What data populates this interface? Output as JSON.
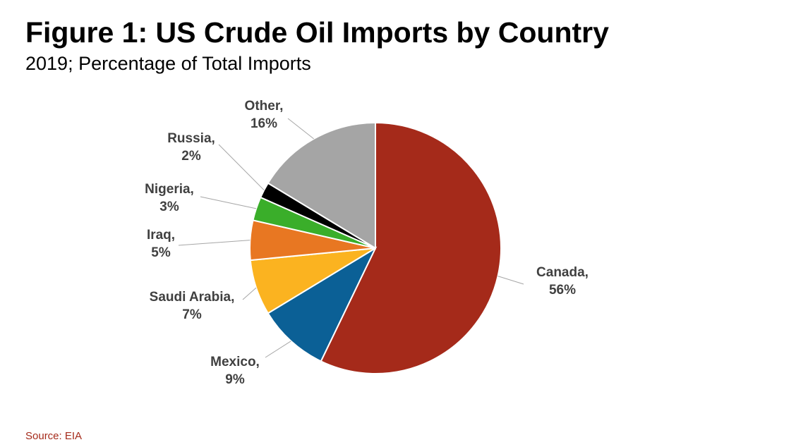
{
  "chart_data": {
    "type": "pie",
    "title": "Figure 1: US Crude Oil Imports by Country",
    "subtitle": "2019; Percentage of Total Imports",
    "source": "Source: EIA",
    "categories": [
      "Canada,",
      "Mexico,",
      "Saudi Arabia,",
      "Iraq,",
      "Nigeria,",
      "Russia,",
      "Other,"
    ],
    "values": [
      56,
      9,
      7,
      5,
      3,
      2,
      16
    ],
    "value_labels": [
      "56%",
      "9%",
      "7%",
      "5%",
      "3%",
      "2%",
      "16%"
    ],
    "colors": [
      "#a52a1a",
      "#0b6096",
      "#fbb320",
      "#e87722",
      "#3aae2a",
      "#000000",
      "#a5a5a5"
    ]
  }
}
